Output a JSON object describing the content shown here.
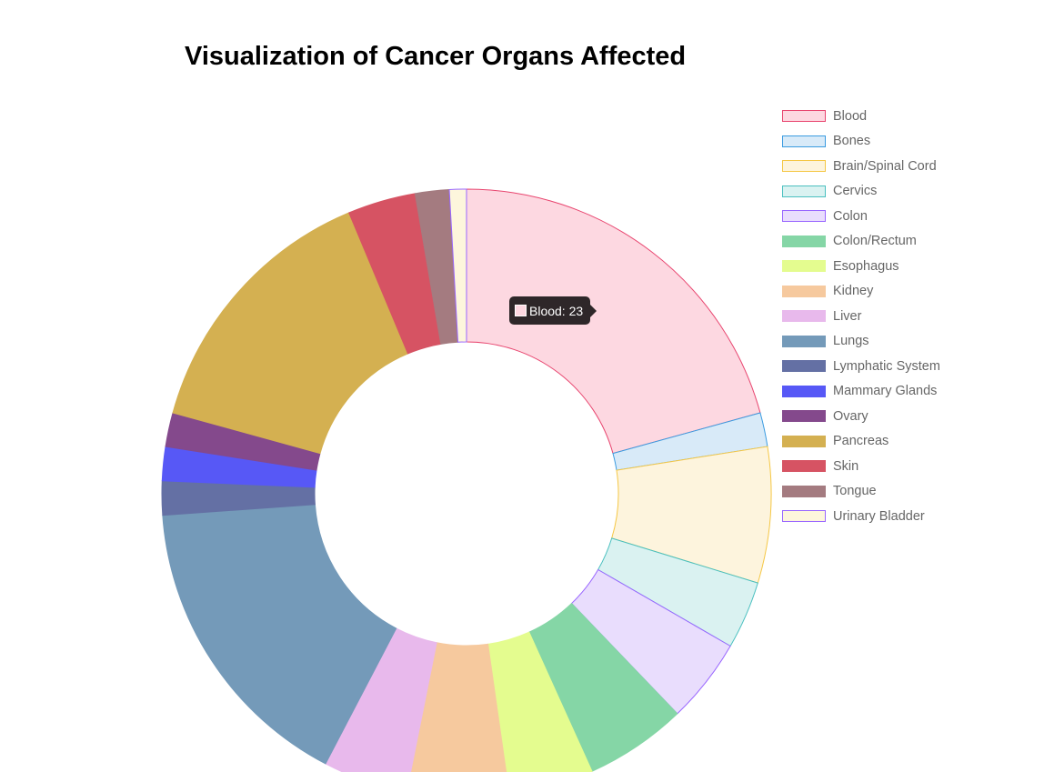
{
  "chart_data": {
    "type": "doughnut",
    "title": "Visualization of Cancer Organs Affected",
    "legend_position": "right",
    "categories": [
      "Blood",
      "Bones",
      "Brain/Spinal Cord",
      "Cervics",
      "Colon",
      "Colon/Rectum",
      "Esophagus",
      "Kidney",
      "Liver",
      "Lungs",
      "Lymphatic System",
      "Mammary Glands",
      "Ovary",
      "Pancreas",
      "Skin",
      "Tongue",
      "Urinary Bladder"
    ],
    "values": [
      23,
      2,
      8,
      4,
      5,
      6,
      5,
      6,
      5,
      18,
      2,
      2,
      2,
      16,
      4,
      2,
      1
    ],
    "fill_colors": [
      "#fdd8e1",
      "#d8eaf8",
      "#fdf4dd",
      "#daf2f1",
      "#e9ddfd",
      "#85d6a6",
      "#e4fc8f",
      "#f6c99e",
      "#e8b9ec",
      "#749ab9",
      "#6470a4",
      "#5758f6",
      "#84498c",
      "#d4b051",
      "#d65363",
      "#a47b80",
      "#fdf6dc"
    ],
    "border_colors": [
      "#e8456f",
      "#3a9be0",
      "#f5c745",
      "#4bc0c0",
      "#9966ff",
      "#85d6a6",
      "#e4fc8f",
      "#f6c99e",
      "#e8b9ec",
      "#749ab9",
      "#6470a4",
      "#5758f6",
      "#84498c",
      "#d4b051",
      "#d65363",
      "#a47b80",
      "#9966ff"
    ],
    "tooltip": {
      "text": "Blood: 23",
      "color": "#fdd8e1"
    }
  }
}
